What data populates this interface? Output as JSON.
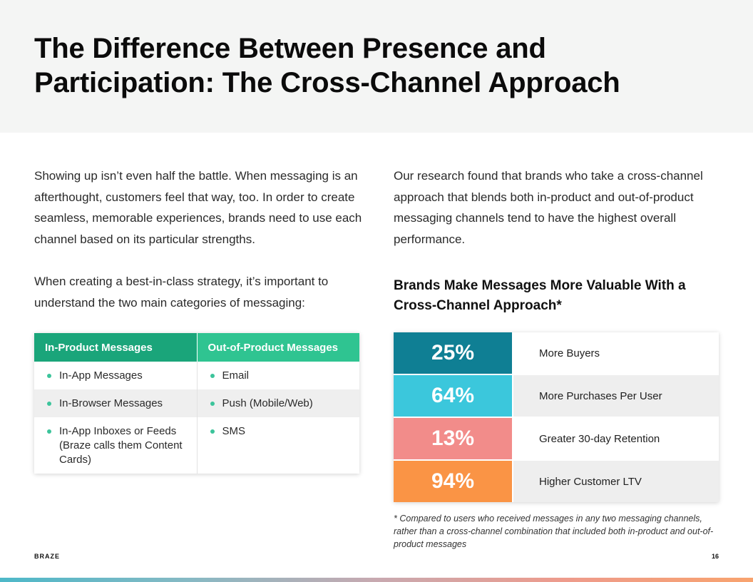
{
  "title": "The Difference Between Presence and Participation: The Cross-Channel Approach",
  "left_column": {
    "paragraph_1": "Showing up isn’t even half the battle. When messaging is an afterthought, customers feel that way, too. In order to create seamless, memorable experiences, brands need to use each channel based on its particular strengths.",
    "paragraph_2": "When creating a best-in-class strategy, it’s important to understand the two main categories of messaging:"
  },
  "messaging_table": {
    "headers": [
      "In-Product Messages",
      "Out-of-Product Messages"
    ],
    "rows": [
      [
        "In-App Messages",
        "Email"
      ],
      [
        "In-Browser Messages",
        "Push (Mobile/Web)"
      ],
      [
        "In-App Inboxes or Feeds (Braze calls them Content Cards)",
        "SMS"
      ]
    ]
  },
  "right_column": {
    "paragraph": "Our research found that brands who take a cross-channel approach that blends both in-product and out-of-product messaging channels tend to have the highest overall performance."
  },
  "stats_chart": {
    "title": "Brands Make Messages More Valuable With a Cross-Channel Approach*",
    "items": [
      {
        "value": "25%",
        "label": "More Buyers",
        "color": "#0f7f94"
      },
      {
        "value": "64%",
        "label": "More Purchases Per User",
        "color": "#3bc7dc"
      },
      {
        "value": "13%",
        "label": "Greater 30-day Retention",
        "color": "#f28c8a"
      },
      {
        "value": "94%",
        "label": "Higher Customer LTV",
        "color": "#fa9445"
      }
    ],
    "footnote": "* Compared to users who received messages in any two messaging channels, rather than a cross-channel combination that included both in-product and out-of-product messages"
  },
  "chart_data": {
    "type": "table",
    "title": "Brands Make Messages More Valuable With a Cross-Channel Approach*",
    "categories": [
      "More Buyers",
      "More Purchases Per User",
      "Greater 30-day Retention",
      "Higher Customer LTV"
    ],
    "values": [
      25,
      64,
      13,
      94
    ],
    "unit": "%"
  },
  "footer": {
    "brand": "BRAZE",
    "page_number": "16"
  },
  "colors": {
    "header_bg": "#f4f5f4",
    "table_header_1": "#1aa57a",
    "table_header_2": "#2fc491",
    "bullet": "#3cc49b"
  }
}
